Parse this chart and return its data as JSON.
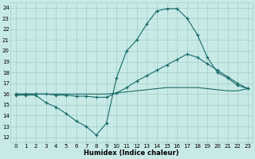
{
  "xlabel": "Humidex (Indice chaleur)",
  "xlim": [
    -0.5,
    23.5
  ],
  "ylim": [
    11.5,
    24.5
  ],
  "xticks": [
    0,
    1,
    2,
    3,
    4,
    5,
    6,
    7,
    8,
    9,
    10,
    11,
    12,
    13,
    14,
    15,
    16,
    17,
    18,
    19,
    20,
    21,
    22,
    23
  ],
  "yticks": [
    12,
    13,
    14,
    15,
    16,
    17,
    18,
    19,
    20,
    21,
    22,
    23,
    24
  ],
  "bg_color": "#c8eae6",
  "grid_color": "#a0cccc",
  "line_color": "#1a6b6b",
  "line1_y": [
    15.9,
    15.9,
    15.9,
    15.2,
    14.8,
    14.2,
    13.5,
    13.0,
    12.2,
    13.3,
    17.5,
    20.0,
    21.0,
    22.5,
    23.7,
    23.9,
    23.9,
    23.0,
    21.5,
    19.4,
    18.0,
    17.5,
    16.8,
    16.5
  ],
  "line2_y": [
    16.0,
    16.0,
    16.0,
    16.0,
    15.9,
    15.9,
    15.8,
    15.8,
    15.7,
    15.7,
    16.1,
    16.6,
    17.2,
    17.7,
    18.2,
    18.7,
    19.2,
    19.7,
    19.4,
    18.8,
    18.2,
    17.6,
    17.0,
    16.5
  ],
  "line3_y": [
    16.0,
    16.0,
    16.0,
    16.0,
    16.0,
    16.0,
    16.0,
    16.0,
    16.0,
    16.0,
    16.1,
    16.2,
    16.3,
    16.4,
    16.5,
    16.6,
    16.6,
    16.6,
    16.6,
    16.5,
    16.4,
    16.3,
    16.3,
    16.5
  ]
}
